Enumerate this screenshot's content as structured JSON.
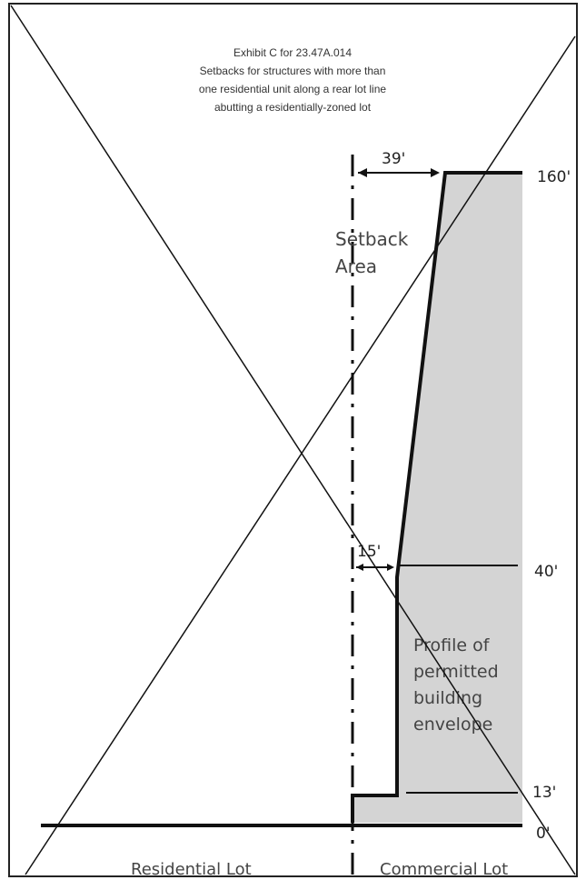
{
  "title": {
    "line1": "Exhibit C for 23.47A.014",
    "line2": "Setbacks for structures with more than",
    "line3": "one residential unit along a rear lot line",
    "line4": "abutting a residentially-zoned lot"
  },
  "labels": {
    "setback_area_line1": "Setback",
    "setback_area_line2": "Area",
    "envelope_line1": "Profile of",
    "envelope_line2": "permitted",
    "envelope_line3": "building",
    "envelope_line4": "envelope",
    "residential_lot": "Residential Lot",
    "commercial_lot": "Commercial Lot"
  },
  "dimensions": {
    "setback_top": "39'",
    "setback_mid": "15'",
    "height_160": "160'",
    "height_40": "40'",
    "height_13": "13'",
    "height_0": "0'"
  },
  "colors": {
    "envelope_fill": "#d4d4d4",
    "line": "#111111",
    "border": "#222222"
  }
}
